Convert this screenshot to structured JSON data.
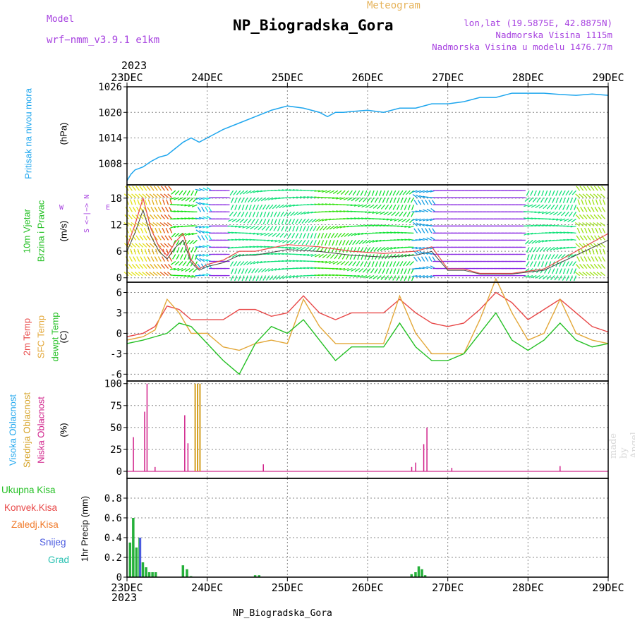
{
  "header": {
    "model_label": "Model",
    "model_value": "wrf−nmm_v3.9.1  e1km",
    "meteogram_label": "Meteogram",
    "station_title": "NP_Biogradska_Gora",
    "lonlat": "lon,lat (19.5875E, 42.8875N)",
    "altitude": "Nadmorska Visina 1115m",
    "model_altitude": "Nadmorska Visina u modelu 1476.77m",
    "year_top": "2023",
    "year_bottom": "2023",
    "footer_station": "NP_Biogradska_Gora",
    "made_by": "made by Angel"
  },
  "colors": {
    "pressure": "#1ea6ee",
    "temp2m": "#e84848",
    "sfc_temp": "#e3a83a",
    "dewpt": "#25c025",
    "high_cloud": "#1ea6ee",
    "mid_cloud": "#d4a020",
    "low_cloud": "#d0208a",
    "total_precip": "#25b03a",
    "conv_precip": "#e84848",
    "snow": "#4a5ae0",
    "wind_label": "#25c025",
    "wind_purple": "#8a2be2"
  },
  "chart_data": [
    {
      "type": "line",
      "panel": "pressure",
      "ylabel_main": "Pritisak na nivou mora",
      "ylabel_unit": "(hPa)",
      "ylim": [
        1003,
        1026
      ],
      "yticks": [
        1008,
        1014,
        1020,
        1026
      ],
      "xticks": [
        "23DEC",
        "24DEC",
        "25DEC",
        "26DEC",
        "27DEC",
        "28DEC",
        "29DEC"
      ],
      "grid": true,
      "series": [
        {
          "x": [
            0,
            0.05,
            0.1,
            0.2,
            0.3,
            0.4,
            0.5,
            0.6,
            0.7,
            0.8,
            0.9,
            1.0,
            1.1,
            1.2,
            1.4,
            1.6,
            1.8,
            2.0,
            2.2,
            2.4,
            2.5,
            2.6,
            2.7,
            2.8,
            3.0,
            3.2,
            3.4,
            3.6,
            3.8,
            4.0,
            4.2,
            4.4,
            4.6,
            4.8,
            5.0,
            5.2,
            5.4,
            5.6,
            5.8,
            6.0
          ],
          "values": [
            1004,
            1005.5,
            1006.5,
            1007.2,
            1008.5,
            1009.5,
            1010,
            1011.5,
            1013,
            1014,
            1013,
            1014,
            1015,
            1016,
            1017.5,
            1019,
            1020.5,
            1021.5,
            1021,
            1020,
            1019,
            1020,
            1020,
            1020.2,
            1020.5,
            1020,
            1021,
            1021,
            1022,
            1022,
            1022.5,
            1023.5,
            1023.5,
            1024.5,
            1024.5,
            1024.5,
            1024.2,
            1024,
            1024.3,
            1024
          ]
        }
      ]
    },
    {
      "type": "line",
      "panel": "wind",
      "ylabel_main": "10m Vjetar",
      "ylabel_sub": "Brzina i Pravac",
      "ylabel_unit": "(m/s)",
      "compass_labels": [
        "N",
        "W",
        "<−|−>",
        "E",
        "S"
      ],
      "ylim": [
        -1,
        21
      ],
      "yticks": [
        0,
        6,
        12,
        18
      ],
      "grid": true,
      "series": [
        {
          "name": "wind_speed",
          "x": [
            0,
            0.1,
            0.2,
            0.3,
            0.4,
            0.5,
            0.6,
            0.7,
            0.8,
            0.9,
            1.0,
            1.2,
            1.4,
            1.6,
            2.0,
            2.4,
            2.8,
            3.2,
            3.6,
            3.8,
            4.0,
            4.2,
            4.4,
            4.8,
            5.2,
            5.6,
            6.0
          ],
          "values": [
            7,
            12,
            18,
            11,
            7,
            5,
            8,
            10,
            4,
            2,
            3,
            4,
            6,
            6,
            7.5,
            7,
            6,
            5.5,
            6,
            7,
            2,
            2,
            1,
            1,
            2,
            6,
            10
          ]
        }
      ]
    },
    {
      "type": "line",
      "panel": "temperature",
      "ylabels": [
        "2m Temp",
        "SFC Temp",
        "dewpt Temp"
      ],
      "ylabel_unit": "(C)",
      "ylim": [
        -7,
        7.5
      ],
      "yticks": [
        -6,
        -3,
        0,
        3,
        6
      ],
      "grid": true,
      "x": [
        0,
        0.2,
        0.35,
        0.5,
        0.65,
        0.8,
        1.0,
        1.2,
        1.4,
        1.6,
        1.8,
        2.0,
        2.2,
        2.4,
        2.6,
        2.8,
        3.0,
        3.2,
        3.4,
        3.6,
        3.8,
        4.0,
        4.2,
        4.4,
        4.6,
        4.8,
        5.0,
        5.2,
        5.4,
        5.6,
        5.8,
        6.0
      ],
      "series": [
        {
          "name": "2m Temp",
          "values": [
            -0.5,
            0,
            1,
            4,
            3.5,
            2,
            2,
            2,
            3.5,
            3.5,
            2.5,
            3,
            5.5,
            3,
            2,
            3,
            3,
            3,
            5,
            3,
            1.5,
            1,
            1.5,
            3.5,
            6,
            4.5,
            2,
            3.5,
            5,
            3,
            1,
            0.2
          ]
        },
        {
          "name": "SFC Temp",
          "values": [
            -1,
            -0.5,
            0.5,
            5,
            3,
            0,
            0,
            -2,
            -2.5,
            -1.5,
            -1,
            -1.5,
            5,
            1,
            -1.5,
            -1.5,
            -1.5,
            -1.5,
            5.5,
            0,
            -3,
            -3,
            -3,
            2,
            8,
            3,
            -1,
            0,
            5,
            0,
            -1,
            -1.5
          ]
        },
        {
          "name": "dewpt Temp",
          "values": [
            -1.5,
            -1,
            -0.5,
            0,
            1.5,
            1,
            -1.5,
            -4,
            -6,
            -1.5,
            1,
            0,
            2,
            -1,
            -4,
            -2,
            -2,
            -2,
            1.5,
            -2,
            -4,
            -4,
            -3,
            0,
            3,
            -1,
            -2.5,
            -1,
            1.5,
            -1,
            -2,
            -1.5
          ]
        }
      ]
    },
    {
      "type": "bar",
      "panel": "cloud",
      "ylabels": [
        "Visoka Oblacnost",
        "Srednja Oblacnost",
        "Niska Oblacnost"
      ],
      "ylabel_unit": "(%)",
      "ylim": [
        0,
        100
      ],
      "yticks": [
        0,
        25,
        50,
        75,
        100
      ],
      "grid": true,
      "series": [
        {
          "name": "Niska Oblacnost",
          "x": [
            0.08,
            0.22,
            0.25,
            0.35,
            0.72,
            0.76,
            1.7,
            3.55,
            3.6,
            3.7,
            3.74,
            4.05,
            5.4
          ],
          "values": [
            39,
            68,
            100,
            5,
            64,
            32,
            8,
            5,
            10,
            31,
            50,
            4,
            6
          ]
        },
        {
          "name": "Srednja Oblacnost",
          "x": [
            0.85,
            0.88,
            0.91
          ],
          "values": [
            100,
            100,
            100
          ]
        }
      ]
    },
    {
      "type": "bar",
      "panel": "precip",
      "ylabels": [
        "Ukupna Kisa",
        "Konvek.Kisa",
        "Zaledj.Kisa",
        "Snijeg",
        "Grad"
      ],
      "ylabel_unit": "1hr Precip (mm)",
      "ylim": [
        0,
        1.0
      ],
      "yticks": [
        0,
        0.2,
        0.4,
        0.6,
        0.8
      ],
      "grid": true,
      "series": [
        {
          "name": "Ukupna Kisa",
          "x": [
            0.04,
            0.08,
            0.12,
            0.16,
            0.2,
            0.24,
            0.28,
            0.32,
            0.36,
            0.7,
            0.75,
            0.8,
            1.6,
            1.65,
            3.55,
            3.6,
            3.64,
            3.68,
            3.72
          ],
          "values": [
            0.35,
            0.6,
            0.3,
            0.4,
            0.15,
            0.1,
            0.05,
            0.05,
            0.05,
            0.12,
            0.08,
            0.01,
            0.02,
            0.02,
            0.03,
            0.05,
            0.11,
            0.08,
            0.02
          ]
        },
        {
          "name": "Snijeg",
          "x": [
            0.16
          ],
          "values": [
            0.4
          ]
        }
      ]
    }
  ]
}
